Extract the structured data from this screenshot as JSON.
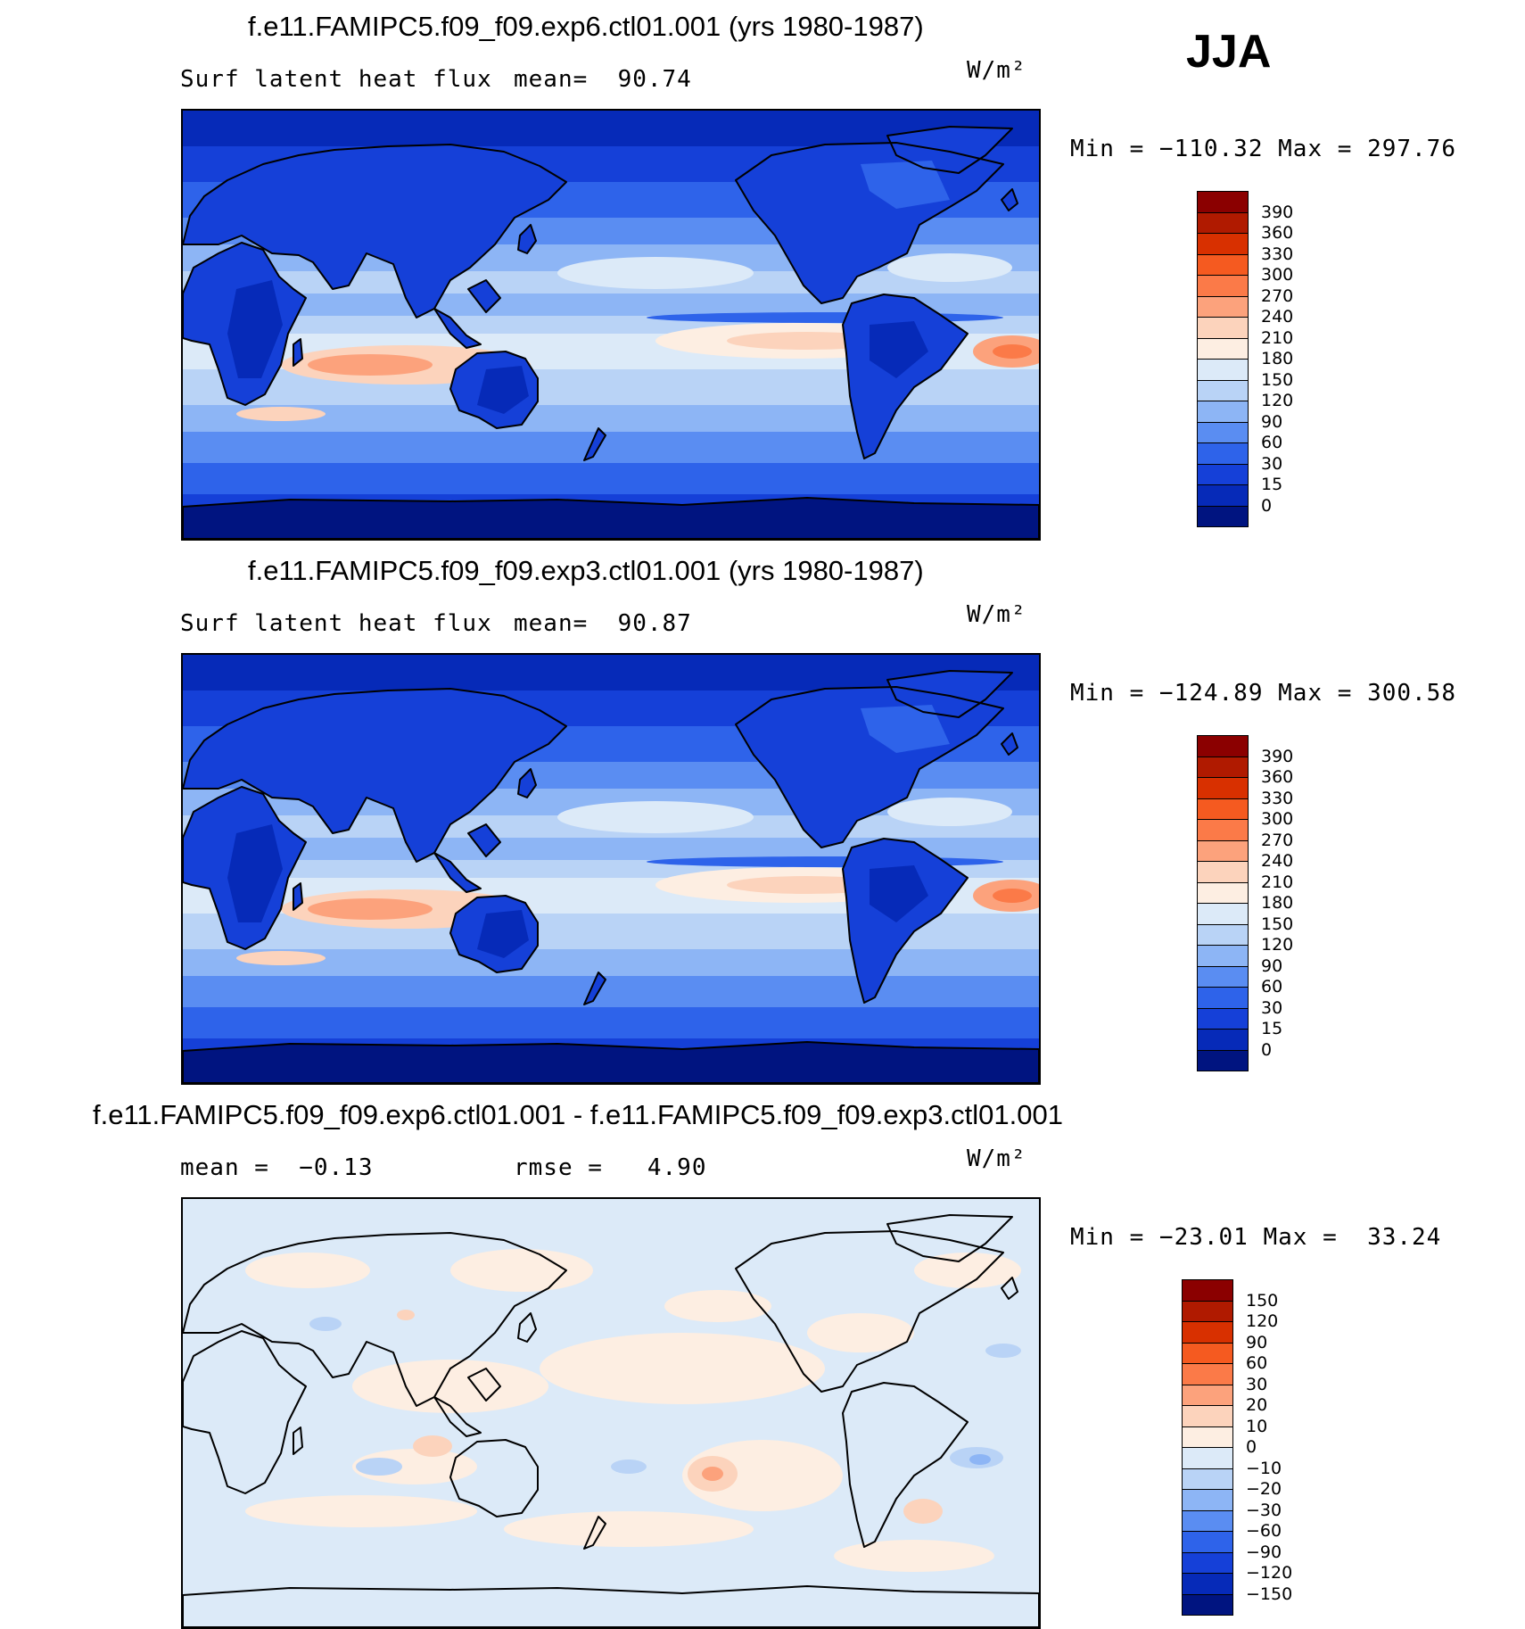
{
  "season": "JJA",
  "panels": [
    {
      "id": "top",
      "title": "f.e11.FAMIPC5.f09_f09.exp6.ctl01.001 (yrs 1980-1987)",
      "variable": "Surf latent heat flux",
      "stat_text": "mean=  90.74",
      "units": "W/m²",
      "minmax": "Min = −110.32 Max = 297.76",
      "scale": [
        "390",
        "360",
        "330",
        "300",
        "270",
        "240",
        "210",
        "180",
        "150",
        "120",
        "90",
        "60",
        "30",
        "15",
        "0"
      ],
      "colors": [
        "#8b0000",
        "#b01a00",
        "#d83000",
        "#f55a20",
        "#fb7a48",
        "#fca27c",
        "#fcd3bc",
        "#fdeee2",
        "#dceaf8",
        "#b9d3f6",
        "#8db5f5",
        "#5a8df2",
        "#2e63ea",
        "#1540d8",
        "#062ab8",
        "#001480"
      ]
    },
    {
      "id": "middle",
      "title": "f.e11.FAMIPC5.f09_f09.exp3.ctl01.001 (yrs 1980-1987)",
      "variable": "Surf latent heat flux",
      "stat_text": "mean=  90.87",
      "units": "W/m²",
      "minmax": "Min = −124.89 Max = 300.58",
      "scale": [
        "390",
        "360",
        "330",
        "300",
        "270",
        "240",
        "210",
        "180",
        "150",
        "120",
        "90",
        "60",
        "30",
        "15",
        "0"
      ],
      "colors": [
        "#8b0000",
        "#b01a00",
        "#d83000",
        "#f55a20",
        "#fb7a48",
        "#fca27c",
        "#fcd3bc",
        "#fdeee2",
        "#dceaf8",
        "#b9d3f6",
        "#8db5f5",
        "#5a8df2",
        "#2e63ea",
        "#1540d8",
        "#062ab8",
        "#001480"
      ]
    },
    {
      "id": "diff",
      "title": "f.e11.FAMIPC5.f09_f09.exp6.ctl01.001 - f.e11.FAMIPC5.f09_f09.exp3.ctl01.001",
      "variable": "mean =  −0.13",
      "stat_text": "rmse =   4.90",
      "units": "W/m²",
      "minmax": "Min = −23.01 Max =  33.24",
      "scale": [
        "150",
        "120",
        "90",
        "60",
        "30",
        "20",
        "10",
        "0",
        "−10",
        "−20",
        "−30",
        "−60",
        "−90",
        "−120",
        "−150"
      ],
      "colors": [
        "#8b0000",
        "#b01a00",
        "#d83000",
        "#f55a20",
        "#fb7a48",
        "#fca27c",
        "#fcd3bc",
        "#fdeee2",
        "#dceaf8",
        "#b9d3f6",
        "#8db5f5",
        "#5a8df2",
        "#2e63ea",
        "#1540d8",
        "#062ab8",
        "#001480"
      ]
    }
  ]
}
